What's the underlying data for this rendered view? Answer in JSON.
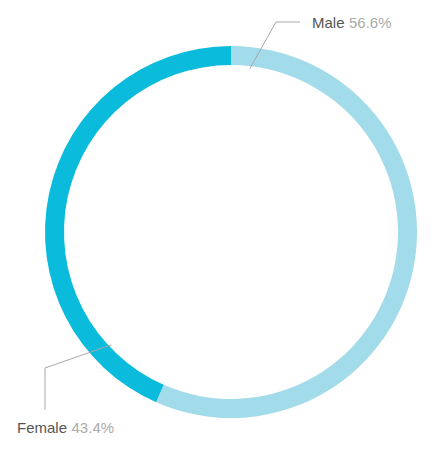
{
  "chart_data": {
    "type": "donut",
    "categories": [
      "Male",
      "Female"
    ],
    "values": [
      56.6,
      43.4
    ],
    "value_labels": [
      "56.6%",
      "43.4%"
    ],
    "colors": [
      "#a2dbe9",
      "#0abbdb"
    ],
    "data_labels": true
  }
}
